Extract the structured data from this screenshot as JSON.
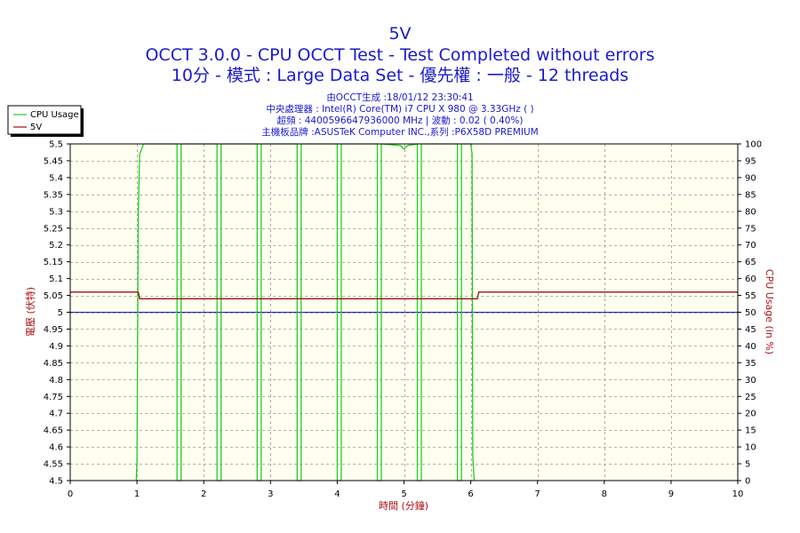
{
  "chart_data": {
    "type": "line",
    "titles": [
      "5V",
      "OCCT 3.0.0 - CPU OCCT Test - Test Completed without errors",
      "10分 - 模式 : Large Data Set - 優先權 : 一般 - 12 threads"
    ],
    "info_lines": [
      "由OCCT生成 :18/01/12 23:30:41",
      "中央處理器 : Intel(R) Core(TM) i7 CPU X 980 @ 3.33GHz (    )",
      "超頻 : 4400596647936000 MHz | 波動 : 0.02 ( 0.40%)",
      "主機板品牌 :ASUSTeK Computer INC.,系列 :P6X58D PREMIUM"
    ],
    "xlabel": "時間 (分鐘)",
    "ylabel_left": "電壓 (伏特)",
    "ylabel_right": "CPU Usage (in %)",
    "xlim": [
      0,
      10
    ],
    "x_ticks": [
      0,
      1,
      2,
      3,
      4,
      5,
      6,
      7,
      8,
      9,
      10
    ],
    "ylim_left": [
      4.5,
      5.5
    ],
    "y_ticks_left": [
      4.5,
      4.55,
      4.6,
      4.65,
      4.7,
      4.75,
      4.8,
      4.85,
      4.9,
      4.95,
      5,
      5.05,
      5.1,
      5.15,
      5.2,
      5.25,
      5.3,
      5.35,
      5.4,
      5.45,
      5.5
    ],
    "ylim_right": [
      0,
      100
    ],
    "y_ticks_right": [
      0,
      5,
      10,
      15,
      20,
      25,
      30,
      35,
      40,
      45,
      50,
      55,
      60,
      65,
      70,
      75,
      80,
      85,
      90,
      95,
      100
    ],
    "grid": true,
    "legend": {
      "placement": "top-left outside plot",
      "entries": [
        "CPU Usage",
        "5V"
      ]
    },
    "reference_line": {
      "axis": "left",
      "value": 5.0,
      "color": "#1a1acc"
    },
    "series": [
      {
        "name": "CPU Usage",
        "axis": "right",
        "color": "#22cc22",
        "points": [
          [
            0.99,
            0
          ],
          [
            1.0,
            6
          ],
          [
            1.02,
            80
          ],
          [
            1.04,
            97
          ],
          [
            1.08,
            99
          ],
          [
            1.1,
            100
          ],
          [
            1.6,
            100
          ],
          [
            1.6,
            0
          ],
          [
            1.66,
            0
          ],
          [
            1.66,
            100
          ],
          [
            2.2,
            100
          ],
          [
            2.2,
            0
          ],
          [
            2.26,
            0
          ],
          [
            2.26,
            100
          ],
          [
            2.8,
            100
          ],
          [
            2.8,
            0
          ],
          [
            2.86,
            0
          ],
          [
            2.86,
            100
          ],
          [
            3.4,
            100
          ],
          [
            3.4,
            0
          ],
          [
            3.46,
            0
          ],
          [
            3.46,
            100
          ],
          [
            4.0,
            100
          ],
          [
            4.0,
            0
          ],
          [
            4.06,
            0
          ],
          [
            4.06,
            100
          ],
          [
            4.6,
            100
          ],
          [
            4.6,
            0
          ],
          [
            4.66,
            0
          ],
          [
            4.66,
            100
          ],
          [
            4.95,
            99.5
          ],
          [
            5.0,
            98.5
          ],
          [
            5.05,
            99.5
          ],
          [
            5.2,
            100
          ],
          [
            5.2,
            0
          ],
          [
            5.26,
            0
          ],
          [
            5.26,
            100
          ],
          [
            5.8,
            100
          ],
          [
            5.8,
            0
          ],
          [
            5.86,
            0
          ],
          [
            5.86,
            100
          ],
          [
            6.0,
            100
          ],
          [
            6.02,
            97
          ],
          [
            6.03,
            7
          ],
          [
            6.05,
            0
          ]
        ]
      },
      {
        "name": "5V",
        "axis": "left",
        "color": "#991111",
        "points": [
          [
            0,
            5.06
          ],
          [
            1.02,
            5.06
          ],
          [
            1.04,
            5.04
          ],
          [
            6.1,
            5.04
          ],
          [
            6.12,
            5.06
          ],
          [
            10,
            5.06
          ]
        ]
      }
    ]
  }
}
